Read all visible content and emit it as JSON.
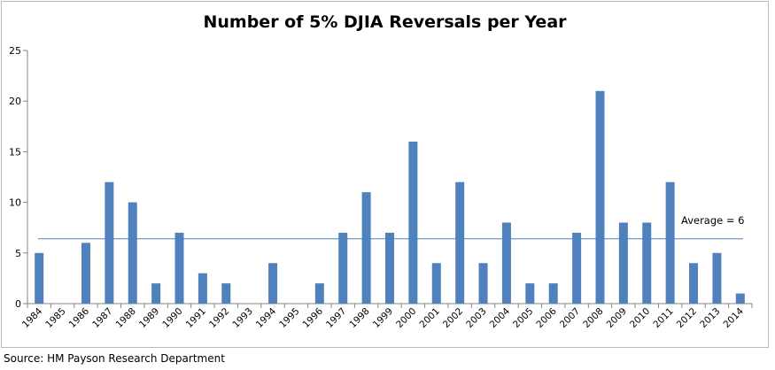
{
  "chart_data": {
    "type": "bar",
    "title": "Number of 5% DJIA Reversals per Year",
    "xlabel": "",
    "ylabel": "",
    "categories": [
      "1984",
      "1985",
      "1986",
      "1987",
      "1988",
      "1989",
      "1990",
      "1991",
      "1992",
      "1993",
      "1994",
      "1995",
      "1996",
      "1997",
      "1998",
      "1999",
      "2000",
      "2001",
      "2002",
      "2003",
      "2004",
      "2005",
      "2006",
      "2007",
      "2008",
      "2009",
      "2010",
      "2011",
      "2012",
      "2013",
      "2014"
    ],
    "values": [
      5,
      0,
      6,
      12,
      10,
      2,
      7,
      3,
      2,
      0,
      4,
      0,
      2,
      7,
      11,
      7,
      16,
      4,
      12,
      4,
      8,
      2,
      2,
      7,
      21,
      8,
      8,
      12,
      4,
      5,
      1
    ],
    "ylim": [
      0,
      25
    ],
    "yticks": [
      "0",
      "5",
      "10",
      "15",
      "20",
      "25"
    ],
    "bar_color": "#4f81bd",
    "average": {
      "value": 6.4,
      "label": "Average = 6",
      "color": "#4f81bd"
    },
    "grid": false,
    "legend": "none"
  },
  "source": "Source: HM Payson Research Department"
}
